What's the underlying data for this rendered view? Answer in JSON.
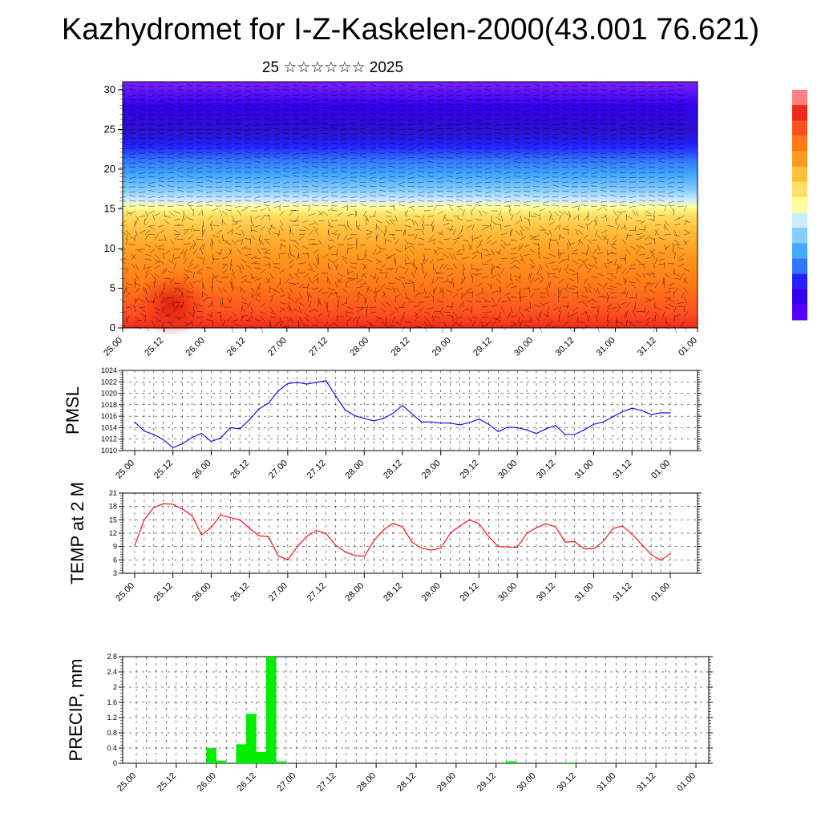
{
  "header": {
    "title": "Kazhydromet for I-Z-Kaskelen-2000(43.001 76.621)",
    "subtitle": "25 ☆☆☆☆☆☆ 2025"
  },
  "colors": {
    "pmsl_line": "#0000ff",
    "temp_line": "#ff0000",
    "precip_bar": "#00ee00",
    "colorbar": [
      "#5500ff",
      "#3300ee",
      "#2222ff",
      "#3377ff",
      "#44aaff",
      "#88ccff",
      "#ccecff",
      "#ffff99",
      "#ffe066",
      "#ffc040",
      "#ff9a20",
      "#ff7a18",
      "#ff5020",
      "#ee2a1a",
      "#ff8080"
    ]
  },
  "chart_data": [
    {
      "type": "heatmap",
      "title": "",
      "xlabel": "",
      "ylabel": "",
      "x_tick_labels": [
        "25.00",
        "25.12",
        "26.00",
        "26.12",
        "27.00",
        "27.12",
        "28.00",
        "28.12",
        "29.00",
        "29.12",
        "30.00",
        "30.12",
        "31.00",
        "31.12",
        "01.00"
      ],
      "ylim": [
        0,
        31
      ],
      "y_ticks": [
        0,
        5,
        10,
        15,
        20,
        25,
        30
      ],
      "overlay": "wind barbs",
      "note_colorbar": "unlabeled color scale, red (warm) at top to violet (cold) at bottom"
    },
    {
      "type": "line",
      "ylabel": "PMSL",
      "x_tick_labels": [
        "25.00",
        "25.12",
        "26.00",
        "26.12",
        "27.00",
        "27.12",
        "28.00",
        "28.12",
        "29.00",
        "29.12",
        "30.00",
        "30.12",
        "31.00",
        "31.12",
        "01.00"
      ],
      "ylim": [
        1010,
        1024
      ],
      "y_ticks": [
        1010,
        1012,
        1014,
        1016,
        1018,
        1020,
        1022,
        1024
      ],
      "grid": true,
      "series": [
        {
          "x": [
            0,
            3,
            6,
            9,
            12,
            15,
            18,
            21,
            24,
            27,
            30,
            33,
            36,
            39,
            42,
            45,
            48,
            51,
            54,
            57,
            60,
            63,
            66,
            69,
            72,
            75,
            78,
            81,
            84,
            87,
            90,
            93,
            96,
            99,
            102,
            105,
            108,
            111,
            114,
            117,
            120,
            123,
            126,
            129,
            132,
            135,
            138,
            141,
            144,
            147,
            150,
            153,
            156,
            159,
            162,
            165,
            168
          ],
          "values": [
            1015.0,
            1013.4,
            1012.8,
            1011.9,
            1010.5,
            1011.2,
            1012.3,
            1013.0,
            1011.6,
            1012.2,
            1014.0,
            1013.8,
            1015.4,
            1017.3,
            1018.3,
            1020.4,
            1021.7,
            1021.9,
            1021.6,
            1021.9,
            1022.2,
            1019.6,
            1017.1,
            1016.1,
            1015.6,
            1015.2,
            1015.6,
            1016.5,
            1017.9,
            1016.4,
            1015.0,
            1015.0,
            1014.8,
            1014.8,
            1014.5,
            1014.9,
            1015.5,
            1014.6,
            1013.3,
            1014.1,
            1014.0,
            1013.6,
            1013.0,
            1013.8,
            1014.4,
            1012.8,
            1012.8,
            1013.6,
            1014.6,
            1015.0,
            1015.9,
            1016.8,
            1017.4,
            1017.0,
            1016.3,
            1016.6,
            1016.6
          ]
        }
      ]
    },
    {
      "type": "line",
      "ylabel": "TEMP at 2 M",
      "x_tick_labels": [
        "25.00",
        "25.12",
        "26.00",
        "26.12",
        "27.00",
        "27.12",
        "28.00",
        "28.12",
        "29.00",
        "29.12",
        "30.00",
        "30.12",
        "31.00",
        "31.12",
        "01.00"
      ],
      "ylim": [
        3,
        21
      ],
      "y_ticks": [
        3,
        6,
        9,
        12,
        15,
        18,
        21
      ],
      "grid": true,
      "series": [
        {
          "x": [
            0,
            3,
            6,
            9,
            12,
            15,
            18,
            21,
            24,
            27,
            30,
            33,
            36,
            39,
            42,
            45,
            48,
            51,
            54,
            57,
            60,
            63,
            66,
            69,
            72,
            75,
            78,
            81,
            84,
            87,
            90,
            93,
            96,
            99,
            102,
            105,
            108,
            111,
            114,
            117,
            120,
            123,
            126,
            129,
            132,
            135,
            138,
            141,
            144,
            147,
            150,
            153,
            156,
            159,
            162,
            165,
            168
          ],
          "values": [
            9.2,
            15.0,
            17.8,
            18.6,
            18.5,
            17.4,
            15.9,
            11.6,
            13.3,
            16.1,
            15.5,
            15.0,
            13.1,
            11.4,
            11.2,
            6.9,
            6.0,
            9.0,
            11.3,
            12.6,
            11.9,
            9.3,
            7.8,
            7.0,
            6.8,
            10.3,
            12.7,
            14.2,
            13.4,
            10.0,
            8.6,
            8.2,
            8.6,
            12.0,
            13.6,
            15.0,
            14.1,
            11.3,
            9.0,
            8.9,
            8.8,
            12.0,
            13.2,
            14.1,
            13.4,
            10.0,
            10.1,
            8.5,
            8.5,
            10.2,
            13.0,
            13.6,
            11.8,
            9.5,
            7.2,
            5.9,
            7.4
          ]
        }
      ]
    },
    {
      "type": "bar",
      "ylabel": "PRECIP, mm",
      "x_tick_labels": [
        "25.00",
        "25.12",
        "26.00",
        "26.12",
        "27.00",
        "27.12",
        "28.00",
        "28.12",
        "29.00",
        "29.12",
        "30.00",
        "30.12",
        "31.00",
        "31.12",
        "01.00"
      ],
      "ylim": [
        0,
        2.8
      ],
      "y_ticks": [
        0,
        0.4,
        0.8,
        1.2,
        1.6,
        2.0,
        2.4,
        2.8
      ],
      "grid": true,
      "series": [
        {
          "x": [
            21,
            24,
            30,
            33,
            36,
            39,
            42,
            111,
            129
          ],
          "values": [
            0.4,
            0.07,
            0.5,
            1.3,
            0.3,
            2.8,
            0.05,
            0.05,
            0.02
          ]
        }
      ]
    }
  ]
}
